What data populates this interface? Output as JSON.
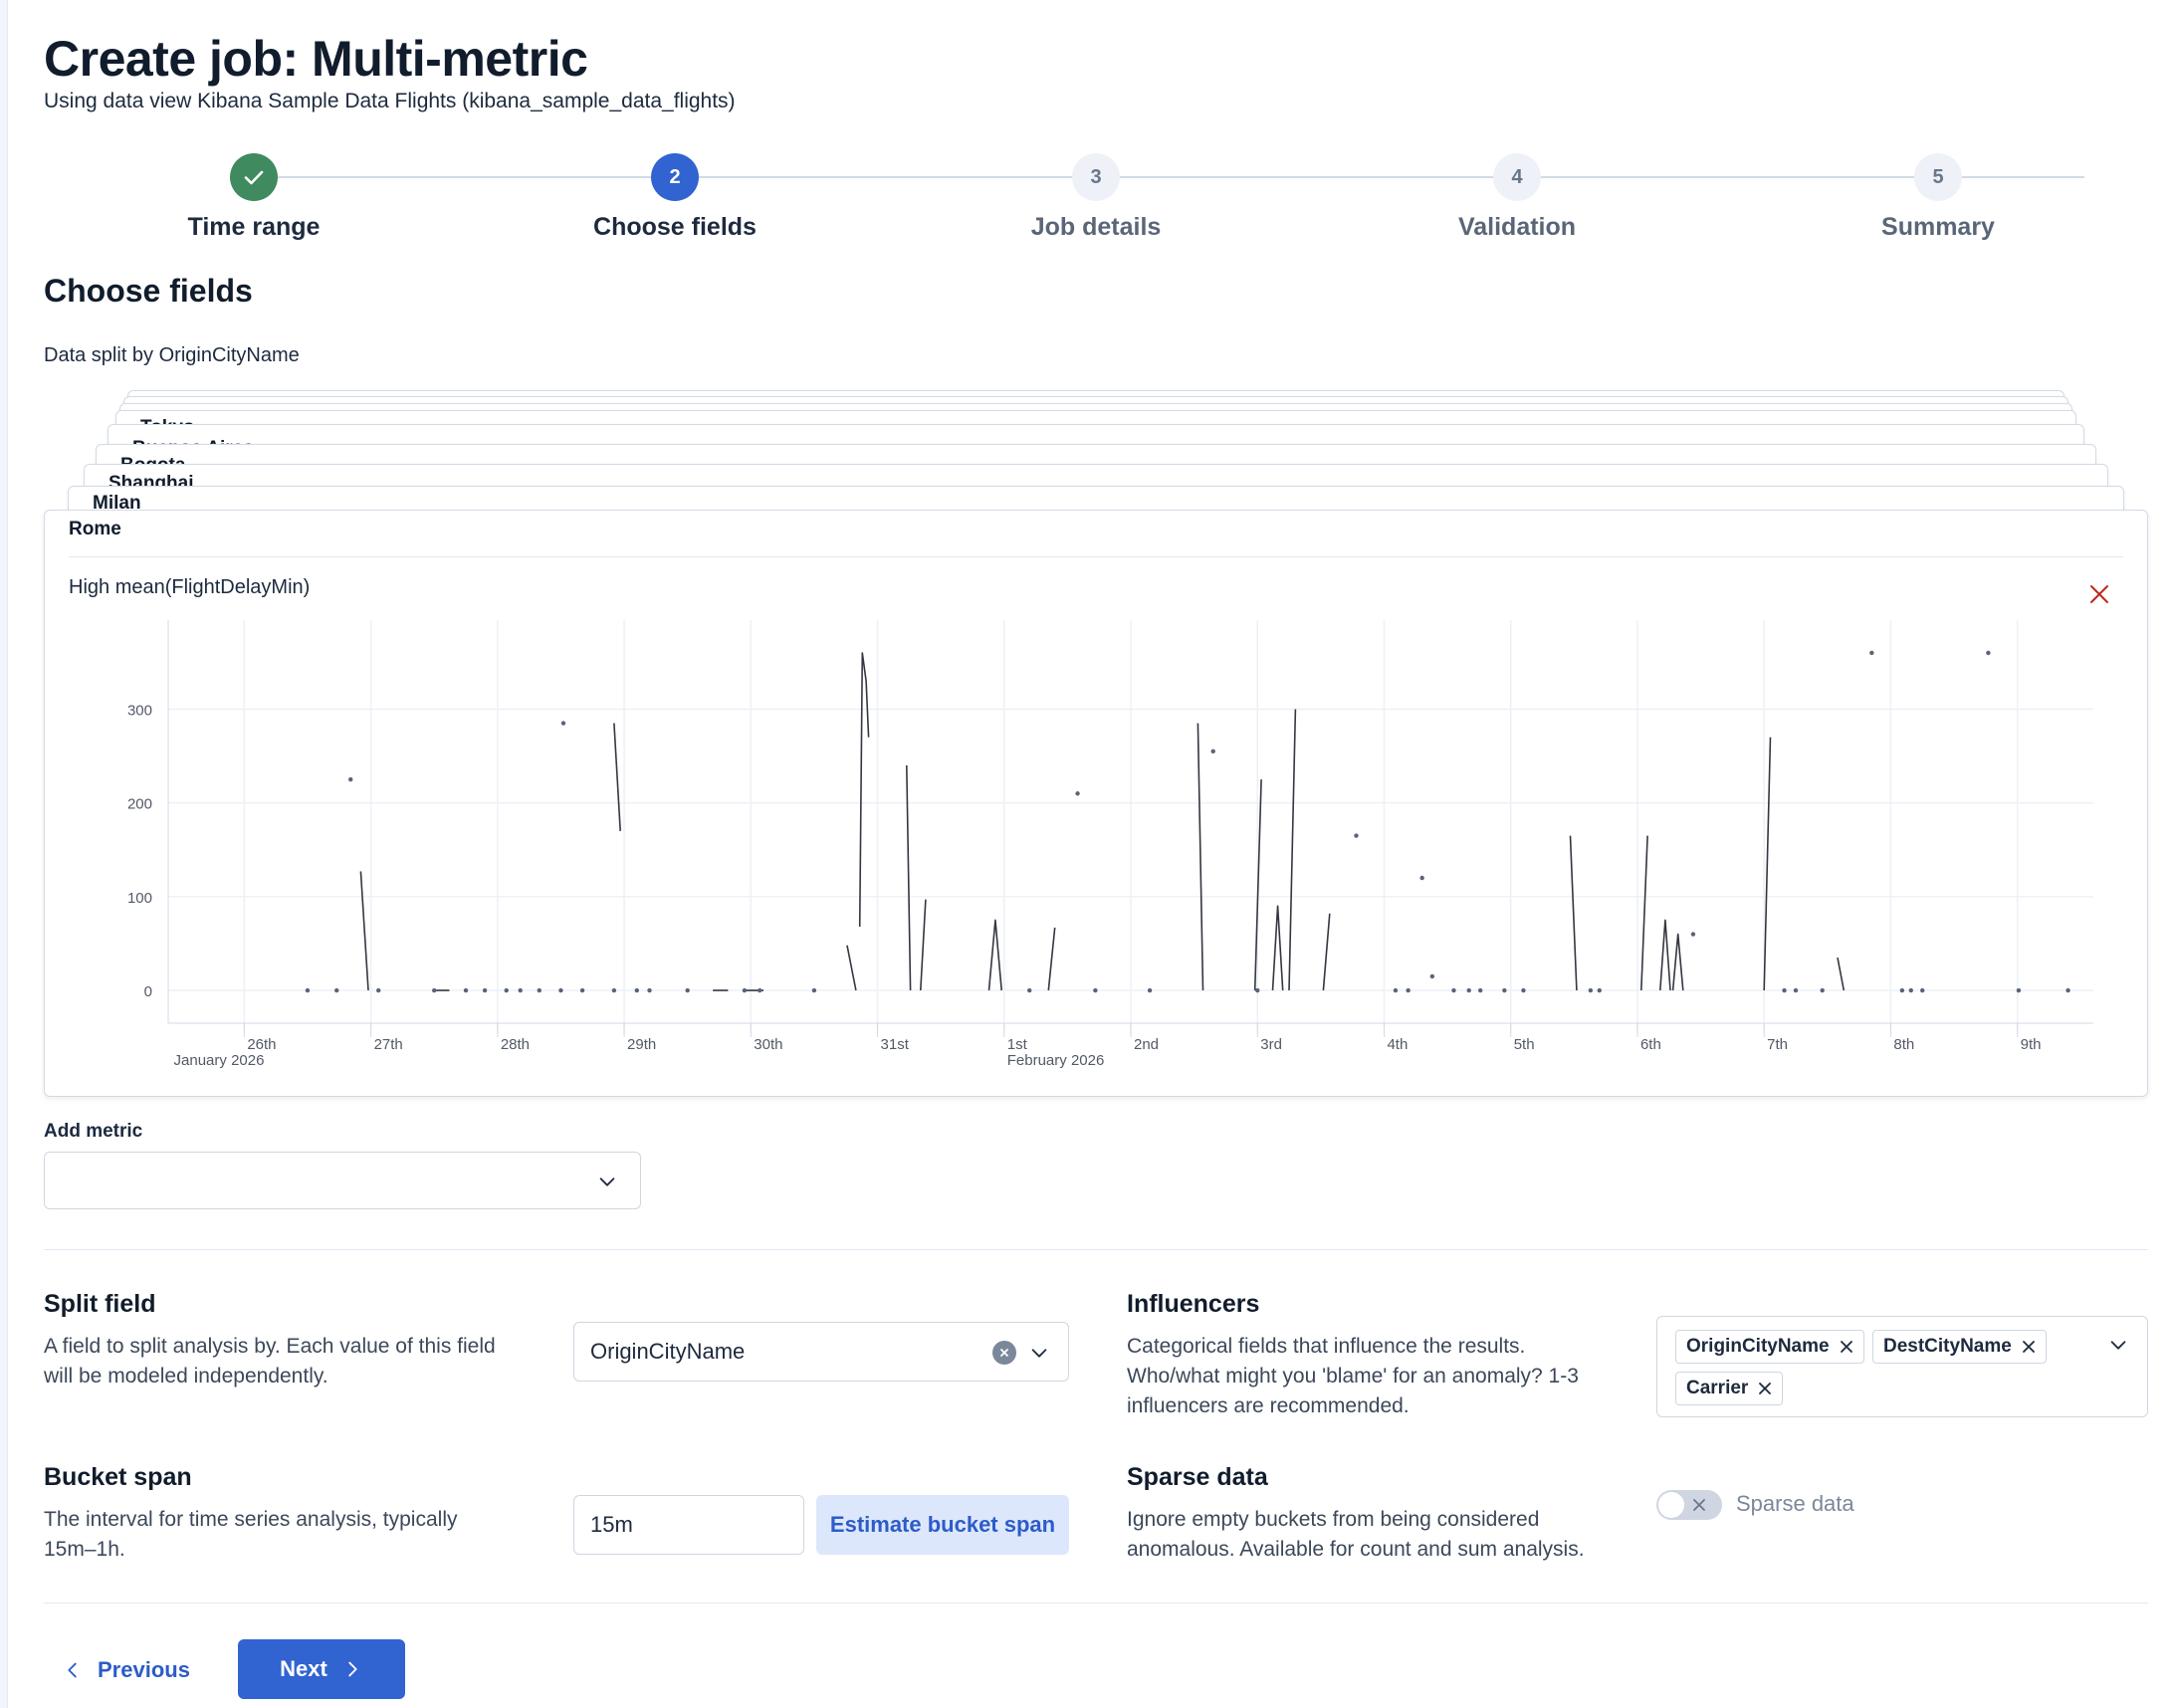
{
  "header": {
    "title": "Create job: Multi-metric",
    "subtitle": "Using data view Kibana Sample Data Flights (kibana_sample_data_flights)"
  },
  "stepper": {
    "steps": [
      {
        "number": "",
        "label": "Time range",
        "status": "complete"
      },
      {
        "number": "2",
        "label": "Choose fields",
        "status": "current"
      },
      {
        "number": "3",
        "label": "Job details",
        "status": "incomplete"
      },
      {
        "number": "4",
        "label": "Validation",
        "status": "incomplete"
      },
      {
        "number": "5",
        "label": "Summary",
        "status": "incomplete"
      }
    ]
  },
  "section": {
    "title": "Choose fields",
    "split_caption": "Data split by OriginCityName"
  },
  "split_cards": {
    "stacked": [
      "Tokyo",
      "Buenos Aires",
      "Bogota",
      "Shanghai",
      "Milan"
    ],
    "front": "Rome"
  },
  "detector": {
    "label": "High mean(FlightDelayMin)"
  },
  "chart_data": {
    "type": "line",
    "title": "",
    "xlabel": "",
    "ylabel": "",
    "x_tick_labels": [
      "26th",
      "27th",
      "28th",
      "29th",
      "30th",
      "31st",
      "1st",
      "2nd",
      "3rd",
      "4th",
      "5th",
      "6th",
      "7th",
      "8th",
      "9th"
    ],
    "x_secondary_labels": [
      "January 2026",
      "February 2026"
    ],
    "y_tick_labels": [
      "0",
      "100",
      "200",
      "300"
    ],
    "ylim": [
      -35,
      395
    ],
    "xlim": [
      25.4,
      40.6
    ],
    "grid": true,
    "series": [
      {
        "color": "#343741",
        "segments": [
          [
            [
              26.92,
              127
            ],
            [
              26.98,
              0
            ]
          ],
          [
            [
              28.92,
              285
            ],
            [
              28.97,
              170
            ]
          ],
          [
            [
              30.76,
              48
            ],
            [
              30.83,
              0
            ]
          ],
          [
            [
              30.86,
              68
            ],
            [
              30.88,
              360
            ],
            [
              30.91,
              330
            ],
            [
              30.93,
              270
            ]
          ],
          [
            [
              31.23,
              240
            ],
            [
              31.26,
              0
            ]
          ],
          [
            [
              31.34,
              0
            ],
            [
              31.38,
              97
            ]
          ],
          [
            [
              31.88,
              0
            ],
            [
              31.93,
              75
            ],
            [
              31.98,
              0
            ]
          ],
          [
            [
              32.35,
              0
            ],
            [
              32.4,
              67
            ]
          ],
          [
            [
              33.53,
              285
            ],
            [
              33.57,
              0
            ]
          ],
          [
            [
              33.98,
              0
            ],
            [
              34.03,
              225
            ]
          ],
          [
            [
              34.12,
              0
            ],
            [
              34.16,
              90
            ],
            [
              34.2,
              0
            ]
          ],
          [
            [
              34.25,
              0
            ],
            [
              34.3,
              300
            ]
          ],
          [
            [
              34.52,
              0
            ],
            [
              34.57,
              82
            ]
          ],
          [
            [
              36.47,
              165
            ],
            [
              36.52,
              0
            ]
          ],
          [
            [
              37.03,
              0
            ],
            [
              37.08,
              165
            ]
          ],
          [
            [
              37.18,
              0
            ],
            [
              37.22,
              75
            ],
            [
              37.26,
              0
            ]
          ],
          [
            [
              37.28,
              0
            ],
            [
              37.32,
              60
            ],
            [
              37.36,
              0
            ]
          ],
          [
            [
              38.0,
              0
            ],
            [
              38.05,
              270
            ]
          ],
          [
            [
              38.58,
              35
            ],
            [
              38.63,
              0
            ]
          ]
        ],
        "points": [
          [
            26.84,
            225
          ],
          [
            28.52,
            285
          ],
          [
            32.58,
            210
          ],
          [
            33.65,
            255
          ],
          [
            34.78,
            165
          ],
          [
            35.3,
            120
          ],
          [
            35.38,
            15
          ],
          [
            37.44,
            60
          ],
          [
            38.85,
            360
          ],
          [
            39.77,
            360
          ],
          [
            26.5,
            0
          ],
          [
            26.73,
            0
          ],
          [
            27.06,
            0
          ],
          [
            27.5,
            0
          ],
          [
            27.75,
            0
          ],
          [
            27.9,
            0
          ],
          [
            28.07,
            0
          ],
          [
            28.18,
            0
          ],
          [
            28.33,
            0
          ],
          [
            28.5,
            0
          ],
          [
            28.67,
            0
          ],
          [
            28.92,
            0
          ],
          [
            29.1,
            0
          ],
          [
            29.2,
            0
          ],
          [
            29.5,
            0
          ],
          [
            29.95,
            0
          ],
          [
            30.07,
            0
          ],
          [
            30.5,
            0
          ],
          [
            32.2,
            0
          ],
          [
            32.72,
            0
          ],
          [
            33.15,
            0
          ],
          [
            34.0,
            0
          ],
          [
            35.09,
            0
          ],
          [
            35.19,
            0
          ],
          [
            35.55,
            0
          ],
          [
            35.67,
            0
          ],
          [
            35.76,
            0
          ],
          [
            35.95,
            0
          ],
          [
            36.1,
            0
          ],
          [
            36.63,
            0
          ],
          [
            36.7,
            0
          ],
          [
            38.16,
            0
          ],
          [
            38.25,
            0
          ],
          [
            38.46,
            0
          ],
          [
            39.09,
            0
          ],
          [
            39.16,
            0
          ],
          [
            39.25,
            0
          ],
          [
            40.01,
            0
          ],
          [
            40.4,
            0
          ]
        ],
        "flat_runs": [
          [
            [
              27.5,
              27.62
            ],
            0
          ],
          [
            [
              29.7,
              29.82
            ],
            0
          ],
          [
            [
              29.95,
              30.1
            ],
            0
          ]
        ]
      }
    ]
  },
  "add_metric": {
    "label": "Add metric",
    "value": ""
  },
  "split_field": {
    "title": "Split field",
    "description_line1": "A field to split analysis by. Each value of this field",
    "description_line2": "will be modeled independently.",
    "value": "OriginCityName"
  },
  "influencers": {
    "title": "Influencers",
    "description_line1": "Categorical fields that influence the results.",
    "description_line2": "Who/what might you 'blame' for an anomaly? 1-3",
    "description_line3": "influencers are recommended.",
    "selected": [
      "OriginCityName",
      "DestCityName",
      "Carrier"
    ]
  },
  "bucket_span": {
    "title": "Bucket span",
    "description_line1": "The interval for time series analysis, typically",
    "description_line2": "15m–1h.",
    "value": "15m",
    "estimate_label": "Estimate bucket span"
  },
  "sparse_data": {
    "title": "Sparse data",
    "description_line1": "Ignore empty buckets from being considered",
    "description_line2": "anomalous. Available for count and sum analysis.",
    "toggle_label": "Sparse data",
    "enabled": false
  },
  "footer": {
    "previous_label": "Previous",
    "next_label": "Next"
  },
  "colors": {
    "primary": "#3163d1",
    "success": "#3f8a5f",
    "danger": "#bd271e"
  },
  "icons": {
    "step_complete": "check-icon",
    "remove_detector": "close-icon",
    "dropdown": "chevron-down-icon",
    "clear": "clear-icon",
    "pill_remove": "cross-icon",
    "toggle": "cross-icon",
    "prev": "chevron-left-icon",
    "next": "chevron-right-icon"
  }
}
